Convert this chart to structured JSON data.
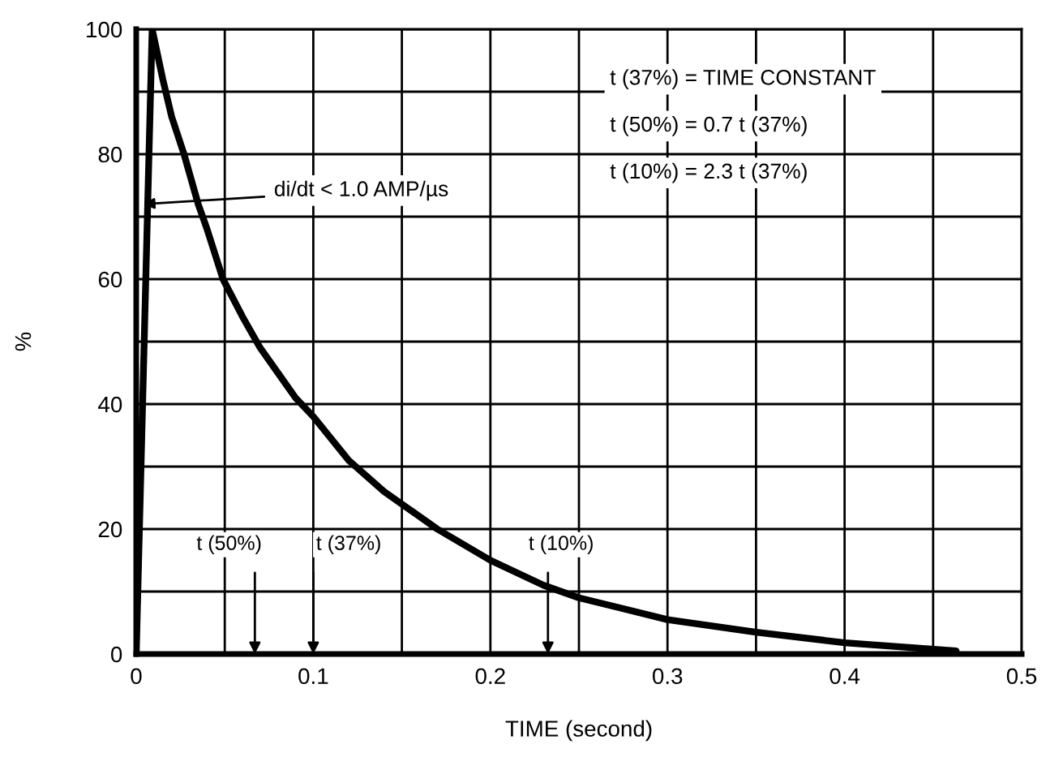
{
  "chart_data": {
    "type": "line",
    "xlabel": "TIME (second)",
    "ylabel": "%",
    "x": [
      0,
      0.009,
      0.015,
      0.02,
      0.027,
      0.035,
      0.04,
      0.049,
      0.06,
      0.07,
      0.08,
      0.09,
      0.1,
      0.12,
      0.14,
      0.17,
      0.2,
      0.23,
      0.25,
      0.3,
      0.35,
      0.4,
      0.463
    ],
    "series": [
      {
        "color": "#000000",
        "values": [
          0,
          100,
          92,
          86,
          80,
          72,
          68,
          60,
          54,
          49,
          45,
          41,
          38,
          31,
          26,
          20,
          15,
          11,
          9,
          5.5,
          3.5,
          1.8,
          0.5
        ]
      }
    ],
    "xlim": [
      0,
      0.5
    ],
    "ylim": [
      0,
      100
    ],
    "xticks": [
      0,
      {
        "value": 0.05,
        "label": null
      },
      0.1,
      {
        "value": 0.15,
        "label": null
      },
      0.2,
      {
        "value": 0.25,
        "label": null
      },
      0.3,
      {
        "value": 0.35,
        "label": null
      },
      0.4,
      {
        "value": 0.45,
        "label": null
      },
      0.5
    ],
    "yticks": [
      0,
      {
        "value": 10,
        "label": null
      },
      20,
      {
        "value": 30,
        "label": null
      },
      40,
      {
        "value": 50,
        "label": null
      },
      60,
      {
        "value": 70,
        "label": null
      },
      80,
      {
        "value": 90,
        "label": null
      },
      100
    ],
    "grid": true,
    "marker": "none",
    "line_style": "solid",
    "legend": false,
    "annotations": [
      {
        "text": "di/dt < 1.0 AMP/µs",
        "x": 0.004,
        "y": 72
      },
      "t (50%)",
      "t (37%)",
      "t (10%)",
      "t (37%) = TIME CONSTANT",
      "t (50%) = 0.7 t (37%)",
      "t (10%) = 2.3 t (37%)"
    ]
  }
}
